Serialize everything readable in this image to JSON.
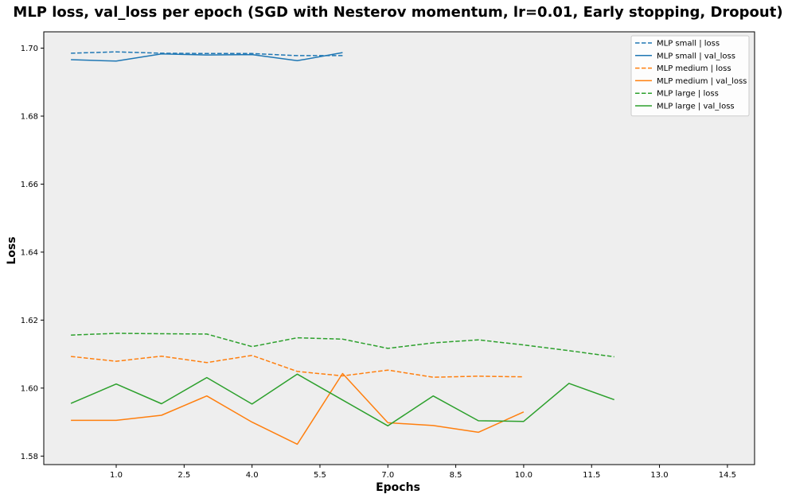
{
  "chart_data": {
    "type": "line",
    "title": "MLP loss, val_loss per epoch (SGD with Nesterov momentum, lr=0.01, Early stopping, Dropout)",
    "xlabel": "Epochs",
    "ylabel": "Loss",
    "xlim": [
      -0.6,
      15.1
    ],
    "ylim": [
      1.5775,
      1.7048
    ],
    "xticks": [
      1.0,
      2.5,
      4.0,
      5.5,
      7.0,
      8.5,
      10.0,
      11.5,
      13.0,
      14.5
    ],
    "xtick_labels": [
      "1.0",
      "2.5",
      "4.0",
      "5.5",
      "7.0",
      "8.5",
      "10.0",
      "11.5",
      "13.0",
      "14.5"
    ],
    "yticks": [
      1.58,
      1.6,
      1.62,
      1.64,
      1.66,
      1.68,
      1.7
    ],
    "ytick_labels": [
      "1.58",
      "1.60",
      "1.62",
      "1.64",
      "1.66",
      "1.68",
      "1.70"
    ],
    "grid": false,
    "legend_position": "top-right",
    "background_color": "#eeeeee",
    "series": [
      {
        "name": "MLP small | loss",
        "color": "#1f77b4",
        "dash": true,
        "x": [
          0,
          1,
          2,
          3,
          4,
          5,
          6
        ],
        "values": [
          1.6985,
          1.6989,
          1.6985,
          1.6984,
          1.6984,
          1.6978,
          1.6978
        ]
      },
      {
        "name": "MLP small | val_loss",
        "color": "#1f77b4",
        "dash": false,
        "x": [
          0,
          1,
          2,
          3,
          4,
          5,
          6
        ],
        "values": [
          1.6966,
          1.6962,
          1.6983,
          1.698,
          1.6981,
          1.6963,
          1.6987
        ]
      },
      {
        "name": "MLP medium | loss",
        "color": "#ff7f0e",
        "dash": true,
        "x": [
          0,
          1,
          2,
          3,
          4,
          5,
          6,
          7,
          8,
          9,
          10
        ],
        "values": [
          1.6093,
          1.6079,
          1.6094,
          1.6075,
          1.6096,
          1.6049,
          1.6036,
          1.6053,
          1.6032,
          1.6035,
          1.6033
        ]
      },
      {
        "name": "MLP medium | val_loss",
        "color": "#ff7f0e",
        "dash": false,
        "x": [
          0,
          1,
          2,
          3,
          4,
          5,
          6,
          7,
          8,
          9,
          10
        ],
        "values": [
          1.5905,
          1.5905,
          1.592,
          1.5977,
          1.59,
          1.5835,
          1.6043,
          1.5898,
          1.589,
          1.587,
          1.593
        ]
      },
      {
        "name": "MLP large | loss",
        "color": "#2ca02c",
        "dash": true,
        "x": [
          0,
          1,
          2,
          3,
          4,
          5,
          6,
          7,
          8,
          9,
          10,
          11,
          12
        ],
        "values": [
          1.6156,
          1.6161,
          1.616,
          1.6159,
          1.6122,
          1.6148,
          1.6144,
          1.6117,
          1.6133,
          1.6142,
          1.6127,
          1.611,
          1.6092
        ]
      },
      {
        "name": "MLP large | val_loss",
        "color": "#2ca02c",
        "dash": false,
        "x": [
          0,
          1,
          2,
          3,
          4,
          5,
          6,
          7,
          8,
          9,
          10,
          11,
          12
        ],
        "values": [
          1.5955,
          1.6012,
          1.5954,
          1.6031,
          1.5953,
          1.6041,
          1.5965,
          1.5889,
          1.5977,
          1.5904,
          1.5902,
          1.6014,
          1.5966
        ]
      }
    ]
  }
}
